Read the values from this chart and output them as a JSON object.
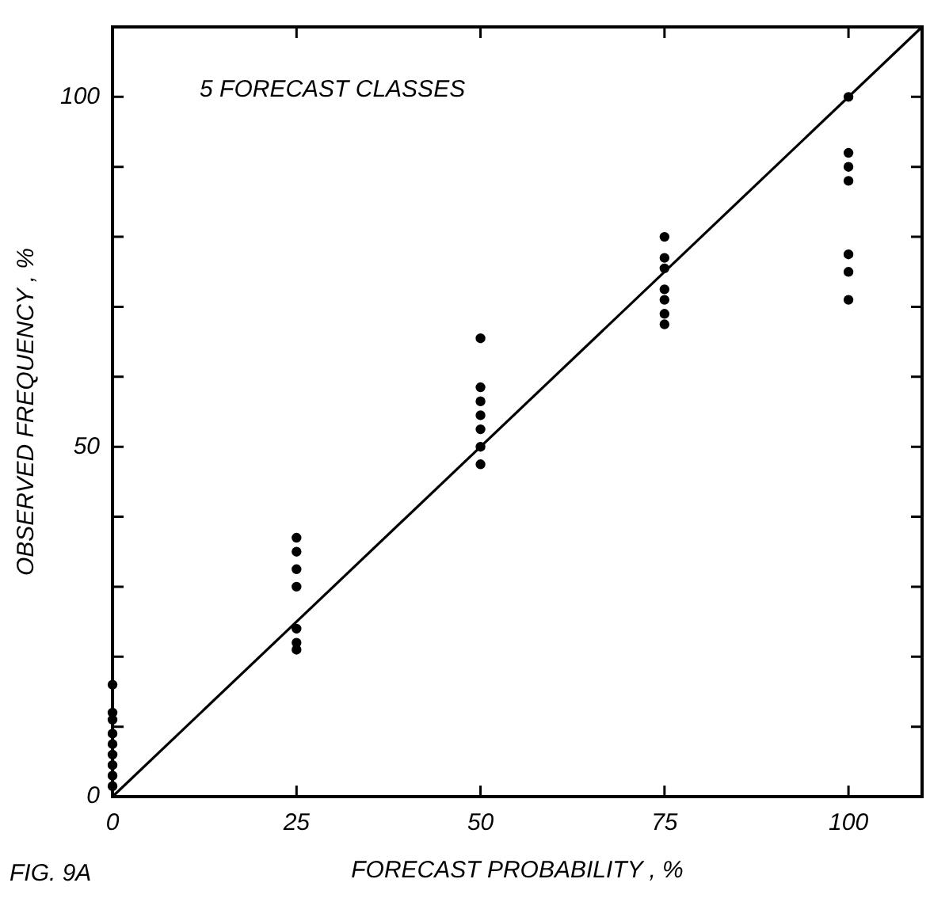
{
  "chart_data": {
    "type": "scatter",
    "title": "5 FORECAST CLASSES",
    "xlabel": "FORECAST PROBABILITY , %",
    "ylabel": "OBSERVED FREQUENCY , %",
    "annotations": [
      "FIG. 9A"
    ],
    "xlim": [
      0,
      110
    ],
    "ylim": [
      0,
      110
    ],
    "xticks": [
      0,
      25,
      50,
      75,
      100
    ],
    "yticks": [
      0,
      {
        "value": 10,
        "label": null
      },
      {
        "value": 20,
        "label": null
      },
      {
        "value": 30,
        "label": null
      },
      {
        "value": 40,
        "label": null
      },
      50,
      {
        "value": 60,
        "label": null
      },
      {
        "value": 70,
        "label": null
      },
      {
        "value": 80,
        "label": null
      },
      {
        "value": 90,
        "label": null
      },
      100
    ],
    "grid": false,
    "legend": false,
    "marker": "circle",
    "series": [
      {
        "type": "scatter",
        "color": "#000000",
        "x": [
          0,
          0,
          0,
          0,
          0,
          0,
          0,
          0,
          0,
          25,
          25,
          25,
          25,
          25,
          25,
          25,
          50,
          50,
          50,
          50,
          50,
          50,
          50,
          75,
          75,
          75,
          75,
          75,
          75,
          75,
          100,
          100,
          100,
          100,
          100,
          100,
          100
        ],
        "values": [
          16,
          12,
          11,
          9,
          7.5,
          6,
          4.5,
          3,
          1.5,
          37,
          35,
          32.5,
          30,
          24,
          22,
          21,
          65.5,
          58.5,
          56.5,
          54.5,
          52.5,
          50,
          47.5,
          80,
          77,
          75.5,
          72.5,
          71,
          69,
          67.5,
          100,
          92,
          90,
          88,
          77.5,
          75,
          71
        ]
      },
      {
        "type": "line",
        "color": "#000000",
        "x": [
          0,
          110
        ],
        "values": [
          0,
          110
        ],
        "marker": "none",
        "line_style": "solid"
      }
    ]
  }
}
